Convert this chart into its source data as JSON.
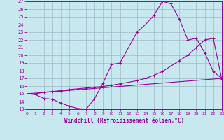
{
  "xlabel": "Windchill (Refroidissement éolien,°C)",
  "xlim": [
    0,
    23
  ],
  "ylim": [
    13,
    27
  ],
  "yticks": [
    13,
    14,
    15,
    16,
    17,
    18,
    19,
    20,
    21,
    22,
    23,
    24,
    25,
    26,
    27
  ],
  "xticks": [
    0,
    1,
    2,
    3,
    4,
    5,
    6,
    7,
    8,
    9,
    10,
    11,
    12,
    13,
    14,
    15,
    16,
    17,
    18,
    19,
    20,
    21,
    22,
    23
  ],
  "line_color": "#990099",
  "bg_color": "#c8e8f0",
  "grid_color": "#a0b8c8",
  "curve1_x": [
    0,
    1,
    2,
    3,
    4,
    5,
    6,
    7,
    8,
    9,
    10,
    11,
    12,
    13,
    14,
    15,
    16,
    17,
    18,
    19,
    20,
    21,
    22,
    23
  ],
  "curve1_y": [
    15.0,
    14.9,
    14.4,
    14.3,
    13.8,
    13.4,
    13.1,
    13.0,
    14.4,
    16.4,
    18.8,
    19.0,
    21.0,
    23.0,
    24.0,
    25.2,
    27.0,
    26.7,
    24.7,
    22.0,
    22.2,
    20.3,
    17.9,
    17.0
  ],
  "curve2_x": [
    0,
    1,
    2,
    3,
    4,
    5,
    6,
    7,
    8,
    9,
    10,
    11,
    12,
    13,
    14,
    15,
    16,
    17,
    18,
    19,
    20,
    21,
    22,
    23
  ],
  "curve2_y": [
    15.0,
    15.0,
    15.2,
    15.3,
    15.4,
    15.55,
    15.65,
    15.75,
    15.85,
    15.95,
    16.1,
    16.3,
    16.5,
    16.7,
    17.0,
    17.4,
    17.9,
    18.6,
    19.3,
    20.0,
    21.0,
    22.0,
    22.2,
    16.9
  ],
  "curve3_x": [
    0,
    23
  ],
  "curve3_y": [
    15.0,
    17.0
  ]
}
